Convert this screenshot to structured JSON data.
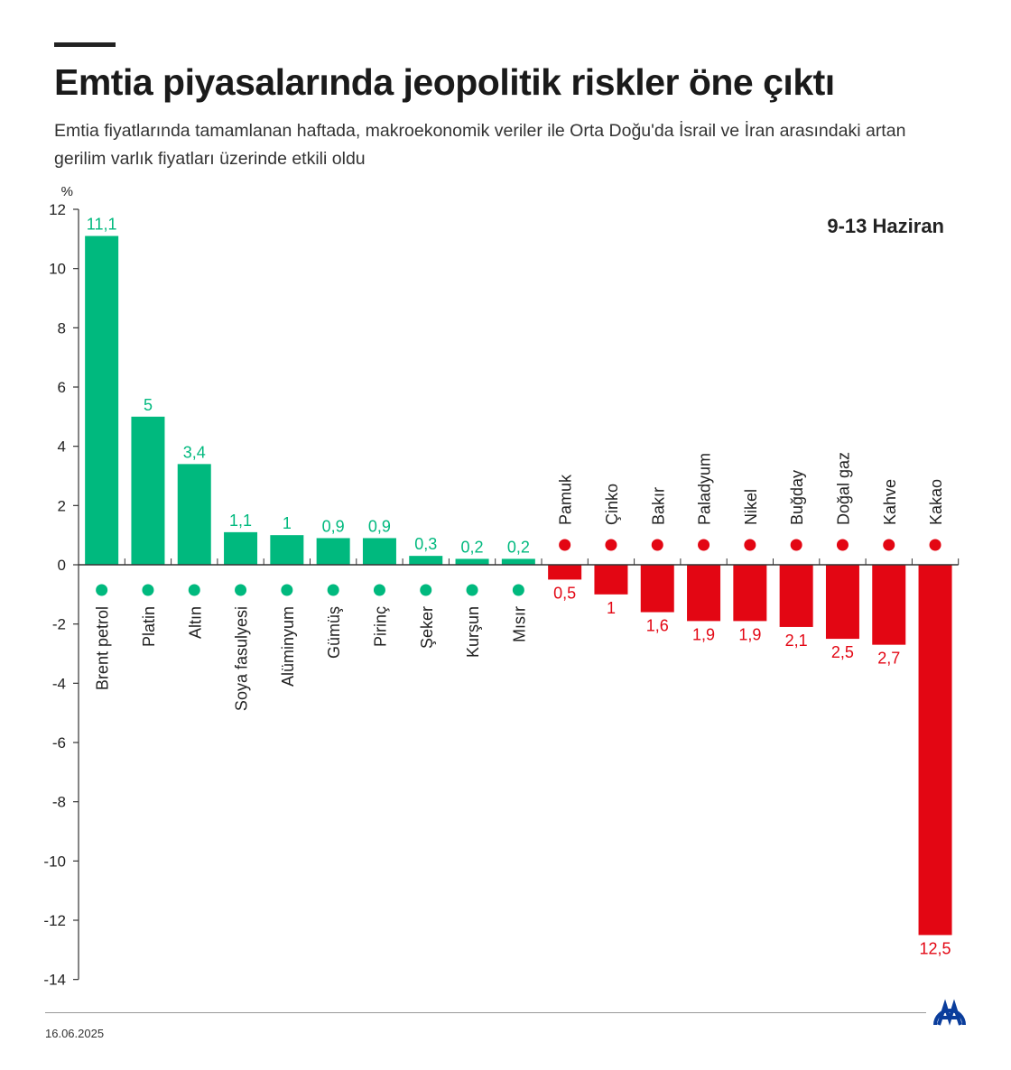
{
  "title": "Emtia piyasalarında jeopolitik riskler öne çıktı",
  "subtitle": "Emtia fiyatlarında tamamlanan haftada, makroekonomik veriler ile Orta Doğu'da İsrail ve İran arasındaki artan gerilim varlık fiyatları üzerinde etkili oldu",
  "date": "16.06.2025",
  "logo_text": "AA",
  "colors": {
    "positive": "#00b97e",
    "negative": "#e30613",
    "logo": "#0a3d9c"
  },
  "chart_data": {
    "type": "bar",
    "title": "Emtia piyasalarında jeopolitik riskler öne çıktı",
    "period": "9-13 Haziran",
    "ylabel": "%",
    "ylim": [
      -14,
      12
    ],
    "yticks": [
      12,
      10,
      8,
      6,
      4,
      2,
      0,
      -2,
      -4,
      -6,
      -8,
      -10,
      -12,
      -14
    ],
    "grid": false,
    "categories": [
      "Brent petrol",
      "Platin",
      "Altın",
      "Soya fasulyesi",
      "Alüminyum",
      "Gümüş",
      "Pirinç",
      "Şeker",
      "Kurşun",
      "Mısır",
      "Pamuk",
      "Çinko",
      "Bakır",
      "Paladyum",
      "Nikel",
      "Buğday",
      "Doğal gaz",
      "Kahve",
      "Kakao"
    ],
    "values": [
      11.1,
      5,
      3.4,
      1.1,
      1,
      0.9,
      0.9,
      0.3,
      0.2,
      0.2,
      -0.5,
      -1,
      -1.6,
      -1.9,
      -1.9,
      -2.1,
      -2.5,
      -2.7,
      -12.5
    ],
    "value_labels": [
      "11,1",
      "5",
      "3,4",
      "1,1",
      "1",
      "0,9",
      "0,9",
      "0,3",
      "0,2",
      "0,2",
      "0,5",
      "1",
      "1,6",
      "1,9",
      "1,9",
      "2,1",
      "2,5",
      "2,7",
      "12,5"
    ],
    "icons": [
      "oil-barrel-icon",
      "metal-ingot-icon",
      "metal-ingot-icon",
      "soybean-icon",
      "metal-ingot-icon",
      "metal-ingot-icon",
      "rice-sack-icon",
      "sugar-sack-icon",
      "metal-ingot-icon",
      "corn-icon",
      "cotton-icon",
      "metal-ingot-icon",
      "metal-ingot-icon",
      "metal-ingot-icon",
      "metal-ingot-icon",
      "wheat-icon",
      "flame-icon",
      "coffee-bean-icon",
      "cocoa-icon"
    ]
  }
}
